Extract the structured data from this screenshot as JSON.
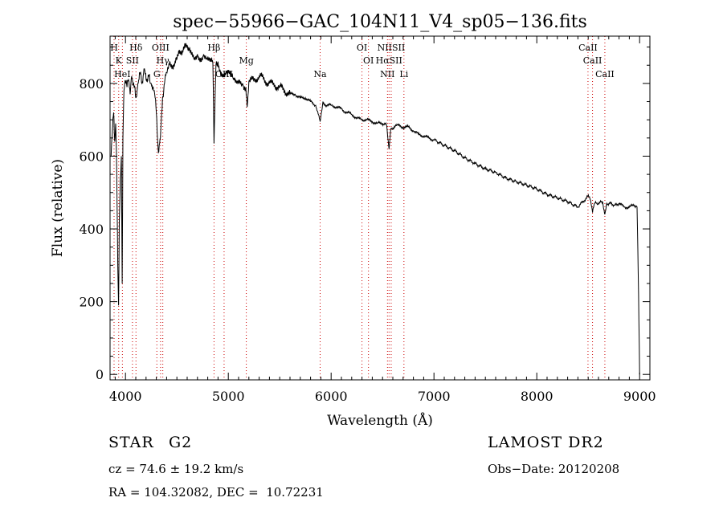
{
  "chart_data": {
    "type": "line",
    "title": "spec−55966−GAC_104N11_V4_sp05−136.fits",
    "xlabel": "Wavelength (Å)",
    "ylabel": "Flux (relative)",
    "xlim": [
      3850,
      9100
    ],
    "ylim": [
      -15,
      930
    ],
    "xticks": [
      4000,
      5000,
      6000,
      7000,
      8000,
      9000
    ],
    "yticks": [
      0,
      200,
      400,
      600,
      800
    ],
    "grid": false,
    "legend": "none",
    "line_color": "#000000",
    "marker_color": "#cc0000",
    "series": [
      {
        "x": [
          3860,
          3875,
          3885,
          3895,
          3905,
          3915,
          3925,
          3933,
          3940,
          3950,
          3960,
          3968,
          3975,
          3985,
          4000,
          4015,
          4030,
          4045,
          4060,
          4080,
          4101,
          4120,
          4140,
          4160,
          4180,
          4200,
          4225,
          4250,
          4280,
          4300,
          4320,
          4340,
          4360,
          4380,
          4400,
          4430,
          4460,
          4490,
          4520,
          4550,
          4580,
          4610,
          4640,
          4670,
          4700,
          4730,
          4760,
          4790,
          4820,
          4850,
          4861,
          4880,
          4900,
          4930,
          4960,
          4990,
          5020,
          5050,
          5080,
          5110,
          5140,
          5170,
          5183,
          5200,
          5250,
          5300,
          5350,
          5400,
          5450,
          5500,
          5550,
          5600,
          5650,
          5700,
          5750,
          5800,
          5850,
          5893,
          5920,
          5950,
          6000,
          6050,
          6100,
          6150,
          6200,
          6250,
          6300,
          6350,
          6400,
          6450,
          6500,
          6540,
          6563,
          6580,
          6620,
          6650,
          6700,
          6750,
          6800,
          6850,
          6900,
          6950,
          7000,
          7100,
          7200,
          7300,
          7400,
          7500,
          7600,
          7700,
          7800,
          7900,
          8000,
          8100,
          8200,
          8300,
          8400,
          8498,
          8520,
          8542,
          8560,
          8600,
          8640,
          8662,
          8680,
          8720,
          8760,
          8800,
          8850,
          8900,
          8950,
          8975,
          8990,
          9000
        ],
        "y": [
          600,
          680,
          720,
          640,
          690,
          560,
          300,
          190,
          420,
          540,
          600,
          250,
          650,
          780,
          800,
          790,
          810,
          770,
          820,
          800,
          760,
          800,
          830,
          800,
          840,
          810,
          820,
          800,
          780,
          720,
          610,
          650,
          760,
          800,
          830,
          860,
          850,
          870,
          890,
          880,
          900,
          890,
          880,
          870,
          880,
          870,
          880,
          870,
          860,
          855,
          635,
          850,
          860,
          830,
          820,
          830,
          820,
          810,
          800,
          810,
          800,
          790,
          735,
          805,
          810,
          820,
          810,
          800,
          795,
          790,
          780,
          770,
          770,
          760,
          760,
          750,
          740,
          695,
          750,
          740,
          740,
          735,
          730,
          720,
          715,
          705,
          700,
          700,
          695,
          690,
          690,
          685,
          620,
          675,
          680,
          685,
          680,
          680,
          670,
          660,
          655,
          650,
          645,
          630,
          615,
          595,
          580,
          565,
          555,
          540,
          530,
          520,
          510,
          495,
          485,
          475,
          460,
          490,
          480,
          445,
          470,
          470,
          475,
          440,
          470,
          470,
          465,
          470,
          460,
          460,
          465,
          460,
          220,
          0
        ]
      }
    ],
    "lines": [
      {
        "name": "H",
        "wl": 3889
      },
      {
        "name": "K",
        "wl": 3934
      },
      {
        "name": "HeI",
        "wl": 3970
      },
      {
        "name": "Hδ",
        "wl": 4102
      },
      {
        "name": "SII",
        "wl": 4068
      },
      {
        "name": "G",
        "wl": 4305
      },
      {
        "name": "OIII",
        "wl": 4341
      },
      {
        "name": "Hγ",
        "wl": 4363
      },
      {
        "name": "OIII",
        "wl": 4959
      },
      {
        "name": "Hβ",
        "wl": 4861
      },
      {
        "name": "Mg",
        "wl": 5175
      },
      {
        "name": "Na",
        "wl": 5893
      },
      {
        "name": "OI",
        "wl": 6300
      },
      {
        "name": "OI",
        "wl": 6363
      },
      {
        "name": "NII",
        "wl": 6548
      },
      {
        "name": "NIISII",
        "wl": 6584
      },
      {
        "name": "HαSII",
        "wl": 6563
      },
      {
        "name": "Li",
        "wl": 6708
      },
      {
        "name": "CaII",
        "wl": 8498
      },
      {
        "name": "CaII",
        "wl": 8542
      },
      {
        "name": "CaII",
        "wl": 8662
      }
    ]
  },
  "info": {
    "object_class": "STAR",
    "subclass": "G2",
    "survey": "LAMOST DR2",
    "cz": "cz = 74.6 ± 19.2 km/s",
    "obs_date": "Obs−Date: 20120208",
    "coords": "RA = 104.32082, DEC =  10.72231"
  }
}
